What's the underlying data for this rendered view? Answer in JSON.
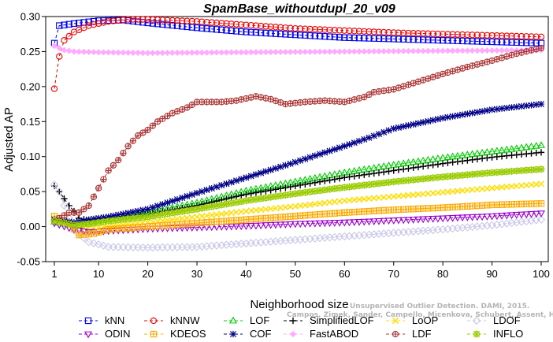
{
  "chart_data": {
    "type": "line",
    "title": "SpamBase_withoutdupl_20_v09",
    "xlabel": "Neighborhood size",
    "ylabel": "Adjusted AP",
    "xlim": [
      1,
      100
    ],
    "ylim": [
      -0.05,
      0.3
    ],
    "xticks": [
      1,
      10,
      20,
      30,
      40,
      50,
      60,
      70,
      80,
      90,
      100
    ],
    "yticks": [
      -0.05,
      0.0,
      0.05,
      0.1,
      0.15,
      0.2,
      0.25,
      0.3
    ],
    "ytick_labels": [
      "-0.05",
      "0.00",
      "0.05",
      "0.10",
      "0.15",
      "0.20",
      "0.25",
      "0.30"
    ],
    "grid": false,
    "legend_position": "bottom",
    "watermark_lines": [
      "Unsupervised Outlier Detection. DAMI, 2015.",
      "Campos, Zimek, Sander, Campello, Micenkova, Schubert, Assent, Houle"
    ],
    "series": [
      {
        "name": "kNN",
        "color": "#0000ee",
        "marker": "square",
        "anchors": [
          [
            1,
            0.262
          ],
          [
            2,
            0.287
          ],
          [
            3,
            0.288
          ],
          [
            5,
            0.29
          ],
          [
            10,
            0.294
          ],
          [
            15,
            0.295
          ],
          [
            20,
            0.291
          ],
          [
            30,
            0.284
          ],
          [
            40,
            0.278
          ],
          [
            50,
            0.274
          ],
          [
            60,
            0.27
          ],
          [
            70,
            0.268
          ],
          [
            80,
            0.266
          ],
          [
            90,
            0.264
          ],
          [
            100,
            0.262
          ]
        ]
      },
      {
        "name": "kNNW",
        "color": "#ee0000",
        "marker": "circle",
        "anchors": [
          [
            1,
            0.197
          ],
          [
            2,
            0.243
          ],
          [
            3,
            0.266
          ],
          [
            5,
            0.278
          ],
          [
            8,
            0.287
          ],
          [
            12,
            0.293
          ],
          [
            16,
            0.296
          ],
          [
            20,
            0.296
          ],
          [
            30,
            0.293
          ],
          [
            40,
            0.288
          ],
          [
            50,
            0.283
          ],
          [
            60,
            0.28
          ],
          [
            70,
            0.277
          ],
          [
            80,
            0.275
          ],
          [
            90,
            0.273
          ],
          [
            100,
            0.271
          ]
        ]
      },
      {
        "name": "LOF",
        "color": "#00cc00",
        "marker": "triangle-up",
        "anchors": [
          [
            1,
            0.007
          ],
          [
            3,
            0.004
          ],
          [
            5,
            0.003
          ],
          [
            8,
            0.006
          ],
          [
            12,
            0.01
          ],
          [
            20,
            0.02
          ],
          [
            30,
            0.034
          ],
          [
            40,
            0.051
          ],
          [
            50,
            0.064
          ],
          [
            60,
            0.077
          ],
          [
            70,
            0.088
          ],
          [
            80,
            0.098
          ],
          [
            90,
            0.107
          ],
          [
            100,
            0.116
          ]
        ]
      },
      {
        "name": "SimplifiedLOF",
        "color": "#000000",
        "marker": "plus",
        "anchors": [
          [
            1,
            0.058
          ],
          [
            2,
            0.05
          ],
          [
            3,
            0.04
          ],
          [
            4,
            0.03
          ],
          [
            5,
            0.022
          ],
          [
            6,
            0.012
          ],
          [
            8,
            0.009
          ],
          [
            12,
            0.012
          ],
          [
            20,
            0.018
          ],
          [
            30,
            0.03
          ],
          [
            40,
            0.046
          ],
          [
            50,
            0.058
          ],
          [
            60,
            0.07
          ],
          [
            70,
            0.08
          ],
          [
            80,
            0.09
          ],
          [
            90,
            0.099
          ],
          [
            100,
            0.106
          ]
        ]
      },
      {
        "name": "LoOP",
        "color": "#ffdd00",
        "marker": "x",
        "anchors": [
          [
            1,
            0.01
          ],
          [
            5,
            0.0
          ],
          [
            8,
            -0.003
          ],
          [
            12,
            0.0
          ],
          [
            20,
            0.006
          ],
          [
            30,
            0.014
          ],
          [
            40,
            0.022
          ],
          [
            50,
            0.029
          ],
          [
            60,
            0.037
          ],
          [
            70,
            0.043
          ],
          [
            80,
            0.049
          ],
          [
            90,
            0.055
          ],
          [
            100,
            0.061
          ]
        ]
      },
      {
        "name": "LDOF",
        "color": "#c8c8e8",
        "marker": "diamond",
        "anchors": [
          [
            1,
            0.06
          ],
          [
            2,
            0.05
          ],
          [
            3,
            0.03
          ],
          [
            5,
            -0.005
          ],
          [
            8,
            -0.022
          ],
          [
            12,
            -0.029
          ],
          [
            20,
            -0.03
          ],
          [
            30,
            -0.029
          ],
          [
            40,
            -0.024
          ],
          [
            50,
            -0.019
          ],
          [
            60,
            -0.014
          ],
          [
            70,
            -0.009
          ],
          [
            80,
            -0.004
          ],
          [
            90,
            0.002
          ],
          [
            100,
            0.01
          ]
        ]
      },
      {
        "name": "ODIN",
        "color": "#9900cc",
        "marker": "triangle-down",
        "anchors": [
          [
            1,
            0.005
          ],
          [
            5,
            -0.004
          ],
          [
            8,
            -0.008
          ],
          [
            12,
            -0.006
          ],
          [
            20,
            -0.003
          ],
          [
            30,
            -0.001
          ],
          [
            40,
            0.001
          ],
          [
            50,
            0.004
          ],
          [
            60,
            0.006
          ],
          [
            70,
            0.009
          ],
          [
            80,
            0.012
          ],
          [
            90,
            0.015
          ],
          [
            100,
            0.019
          ]
        ]
      },
      {
        "name": "KDEOS",
        "color": "#ffaa00",
        "marker": "boxplus",
        "anchors": [
          [
            1,
            0.015
          ],
          [
            4,
            0.005
          ],
          [
            6,
            -0.012
          ],
          [
            9,
            -0.01
          ],
          [
            12,
            -0.004
          ],
          [
            20,
            0.0
          ],
          [
            30,
            0.005
          ],
          [
            40,
            0.01
          ],
          [
            50,
            0.015
          ],
          [
            60,
            0.02
          ],
          [
            70,
            0.024
          ],
          [
            80,
            0.027
          ],
          [
            90,
            0.031
          ],
          [
            100,
            0.033
          ]
        ]
      },
      {
        "name": "COF",
        "color": "#000088",
        "marker": "asterisk",
        "anchors": [
          [
            1,
            0.01
          ],
          [
            3,
            0.008
          ],
          [
            5,
            0.006
          ],
          [
            8,
            0.01
          ],
          [
            12,
            0.014
          ],
          [
            20,
            0.025
          ],
          [
            30,
            0.048
          ],
          [
            40,
            0.07
          ],
          [
            50,
            0.092
          ],
          [
            60,
            0.115
          ],
          [
            65,
            0.127
          ],
          [
            70,
            0.14
          ],
          [
            80,
            0.155
          ],
          [
            90,
            0.167
          ],
          [
            100,
            0.175
          ]
        ]
      },
      {
        "name": "FastABOD",
        "color": "#ffaaff",
        "marker": "diamond-filled",
        "anchors": [
          [
            1,
            0.258
          ],
          [
            3,
            0.252
          ],
          [
            5,
            0.25
          ],
          [
            10,
            0.249
          ],
          [
            20,
            0.248
          ],
          [
            40,
            0.249
          ],
          [
            60,
            0.25
          ],
          [
            80,
            0.251
          ],
          [
            100,
            0.252
          ]
        ]
      },
      {
        "name": "LDF",
        "color": "#aa3333",
        "marker": "circle-plus",
        "anchors": [
          [
            1,
            0.008
          ],
          [
            4,
            0.02
          ],
          [
            6,
            0.02
          ],
          [
            8,
            0.03
          ],
          [
            10,
            0.055
          ],
          [
            12,
            0.08
          ],
          [
            14,
            0.095
          ],
          [
            16,
            0.115
          ],
          [
            18,
            0.13
          ],
          [
            20,
            0.138
          ],
          [
            22,
            0.15
          ],
          [
            25,
            0.162
          ],
          [
            28,
            0.17
          ],
          [
            30,
            0.178
          ],
          [
            35,
            0.178
          ],
          [
            38,
            0.18
          ],
          [
            42,
            0.186
          ],
          [
            45,
            0.182
          ],
          [
            48,
            0.175
          ],
          [
            52,
            0.178
          ],
          [
            56,
            0.18
          ],
          [
            60,
            0.178
          ],
          [
            64,
            0.185
          ],
          [
            66,
            0.192
          ],
          [
            70,
            0.196
          ],
          [
            75,
            0.207
          ],
          [
            80,
            0.218
          ],
          [
            85,
            0.228
          ],
          [
            90,
            0.237
          ],
          [
            95,
            0.247
          ],
          [
            100,
            0.255
          ]
        ]
      },
      {
        "name": "INFLO",
        "color": "#99cc00",
        "marker": "sun",
        "anchors": [
          [
            1,
            0.008
          ],
          [
            5,
            0.002
          ],
          [
            8,
            0.004
          ],
          [
            12,
            0.008
          ],
          [
            20,
            0.014
          ],
          [
            30,
            0.025
          ],
          [
            40,
            0.037
          ],
          [
            50,
            0.047
          ],
          [
            60,
            0.056
          ],
          [
            70,
            0.064
          ],
          [
            80,
            0.071
          ],
          [
            90,
            0.077
          ],
          [
            100,
            0.082
          ]
        ]
      }
    ]
  }
}
